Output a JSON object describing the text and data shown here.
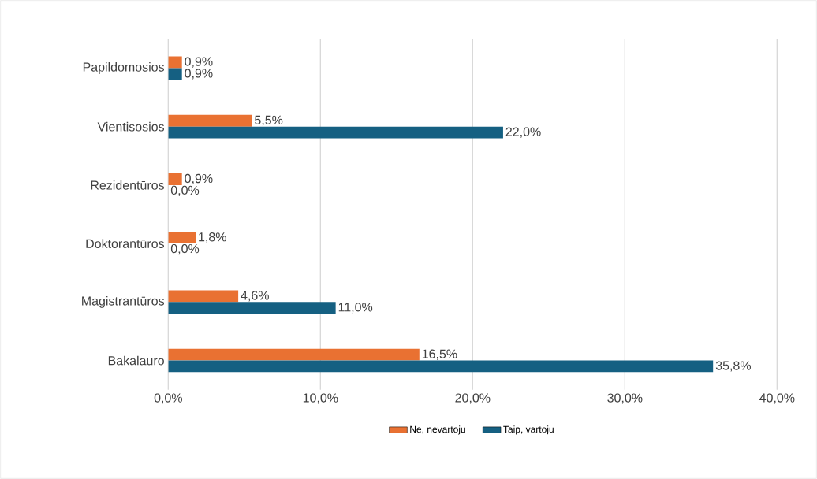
{
  "chart_data": {
    "type": "bar",
    "orientation": "horizontal",
    "categories": [
      "Papildomosios",
      "Vientisosios",
      "Rezidentūros",
      "Doktorantūros",
      "Magistrantūros",
      "Bakalauro"
    ],
    "series": [
      {
        "name": "Ne, nevartoju",
        "color": "#e97132",
        "values": [
          0.9,
          5.5,
          0.9,
          1.8,
          4.6,
          16.5
        ],
        "value_labels": [
          "0,9%",
          "5,5%",
          "0,9%",
          "1,8%",
          "4,6%",
          "16,5%"
        ]
      },
      {
        "name": "Taip, vartoju",
        "color": "#156082",
        "values": [
          0.9,
          22.0,
          0.0,
          0.0,
          11.0,
          35.8
        ],
        "value_labels": [
          "0,9%",
          "22,0%",
          "0,0%",
          "0,0%",
          "11,0%",
          "35,8%"
        ]
      }
    ],
    "xlim": [
      0,
      40
    ],
    "xticks": [
      {
        "value": 0,
        "label": "0,0%"
      },
      {
        "value": 10,
        "label": "10,0%"
      },
      {
        "value": 20,
        "label": "20,0%"
      },
      {
        "value": 30,
        "label": "30,0%"
      },
      {
        "value": 40,
        "label": "40,0%"
      }
    ],
    "grid": "x",
    "legend": "bottom"
  }
}
